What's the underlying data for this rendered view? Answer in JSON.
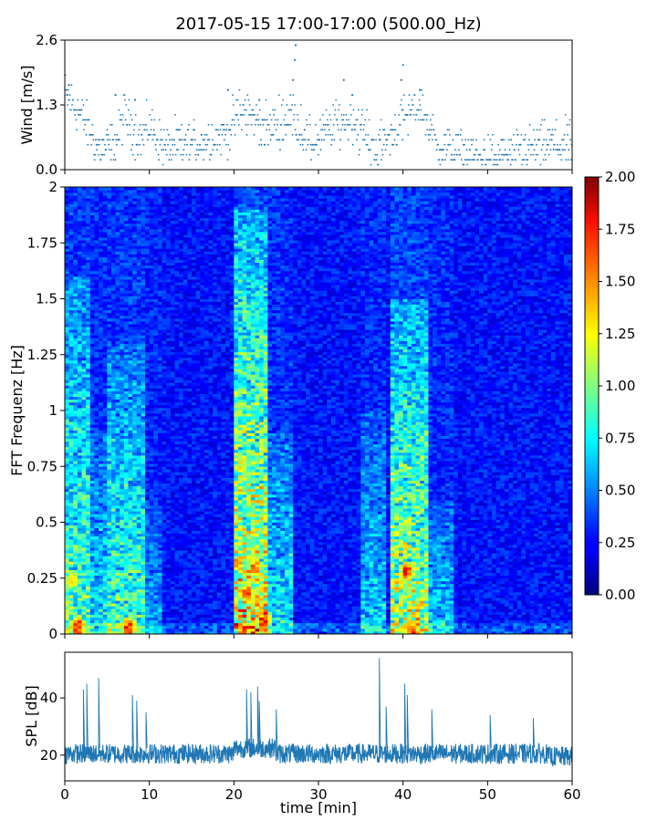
{
  "title": "2017-05-15 17:00-17:00 (500.00_Hz)",
  "colors": {
    "series": "#1f77b4",
    "axis": "#000000",
    "background": "#ffffff"
  },
  "chart_data": [
    {
      "type": "scatter",
      "name": "wind",
      "ylabel": "Wind [m/s]",
      "ylim": [
        0.0,
        2.6
      ],
      "yticks": [
        0.0,
        1.3,
        2.6
      ],
      "ytick_labels": [
        "0.0",
        "1.3",
        "2.6"
      ],
      "xlim": [
        0,
        60
      ],
      "shared_xticks": [
        0,
        10,
        20,
        30,
        40,
        50,
        60
      ],
      "quantization_step": 0.1,
      "segments": [
        {
          "x": [
            0,
            2
          ],
          "y": [
            1.5,
            1.1
          ]
        },
        {
          "x": [
            2,
            4
          ],
          "y": [
            1.1,
            0.4
          ]
        },
        {
          "x": [
            4,
            6
          ],
          "y": [
            0.4,
            0.5
          ]
        },
        {
          "x": [
            6,
            7
          ],
          "y": [
            0.5,
            1.1
          ]
        },
        {
          "x": [
            7,
            9
          ],
          "y": [
            1.1,
            0.6
          ]
        },
        {
          "x": [
            9,
            10
          ],
          "y": [
            0.6,
            0.9
          ]
        },
        {
          "x": [
            10,
            12
          ],
          "y": [
            0.9,
            0.4
          ]
        },
        {
          "x": [
            12,
            19
          ],
          "y": [
            0.4,
            0.7
          ]
        },
        {
          "x": [
            19,
            21
          ],
          "y": [
            0.7,
            1.2
          ]
        },
        {
          "x": [
            21,
            24
          ],
          "y": [
            1.2,
            0.8
          ]
        },
        {
          "x": [
            24,
            27
          ],
          "y": [
            0.8,
            1.1
          ]
        },
        {
          "x": [
            27,
            29
          ],
          "y": [
            1.1,
            0.5
          ]
        },
        {
          "x": [
            29,
            32
          ],
          "y": [
            0.5,
            0.9
          ]
        },
        {
          "x": [
            32,
            34
          ],
          "y": [
            0.9,
            1.0
          ]
        },
        {
          "x": [
            34,
            37
          ],
          "y": [
            1.0,
            0.4
          ]
        },
        {
          "x": [
            37,
            40
          ],
          "y": [
            0.4,
            1.0
          ]
        },
        {
          "x": [
            40,
            42
          ],
          "y": [
            1.0,
            1.3
          ]
        },
        {
          "x": [
            42,
            44
          ],
          "y": [
            1.3,
            0.5
          ]
        },
        {
          "x": [
            44,
            47
          ],
          "y": [
            0.5,
            0.3
          ]
        },
        {
          "x": [
            47,
            51
          ],
          "y": [
            0.3,
            0.2
          ]
        },
        {
          "x": [
            51,
            57
          ],
          "y": [
            0.2,
            0.5
          ]
        },
        {
          "x": [
            57,
            60
          ],
          "y": [
            0.5,
            0.5
          ]
        }
      ],
      "peaks": [
        {
          "x": 27.3,
          "y": 2.5
        },
        {
          "x": 27.2,
          "y": 2.2
        },
        {
          "x": 27.0,
          "y": 1.8
        },
        {
          "x": 40.0,
          "y": 2.1
        },
        {
          "x": 39.8,
          "y": 1.8
        },
        {
          "x": 33.0,
          "y": 1.8
        },
        {
          "x": 0.5,
          "y": 1.7
        },
        {
          "x": 0.3,
          "y": 1.5
        },
        {
          "x": 19.3,
          "y": 1.6
        },
        {
          "x": 42.0,
          "y": 1.6
        },
        {
          "x": 6.0,
          "y": 1.5
        },
        {
          "x": 8.3,
          "y": 1.4
        },
        {
          "x": 23.0,
          "y": 1.4
        },
        {
          "x": 34.0,
          "y": 1.5
        }
      ]
    },
    {
      "type": "heatmap",
      "name": "spectrogram",
      "ylabel": "FFT Frequenz [Hz]",
      "ylim": [
        0,
        2
      ],
      "yticks": [
        0,
        0.25,
        0.5,
        0.75,
        1,
        1.25,
        1.5,
        1.75,
        2
      ],
      "ytick_labels": [
        "0",
        "0.25",
        "0.5",
        "0.75",
        "1",
        "1.25",
        "1.5",
        "1.75",
        "2"
      ],
      "xlim": [
        0,
        60
      ],
      "colorbar": {
        "range": [
          0.0,
          2.0
        ],
        "ticks": [
          0.0,
          0.25,
          0.5,
          0.75,
          1.0,
          1.25,
          1.5,
          1.75,
          2.0
        ],
        "tick_labels": [
          "0.00",
          "0.25",
          "0.50",
          "0.75",
          "1.00",
          "1.25",
          "1.50",
          "1.75",
          "2.00"
        ],
        "colormap": "jet"
      },
      "baseline_intensity": 0.28,
      "active_bands": [
        {
          "x": [
            0,
            3
          ],
          "intensity": 0.75,
          "max_freq": 1.6
        },
        {
          "x": [
            3,
            5
          ],
          "intensity": 0.5,
          "max_freq": 0.9
        },
        {
          "x": [
            5,
            9.5
          ],
          "intensity": 0.7,
          "max_freq": 1.3
        },
        {
          "x": [
            9.5,
            11.5
          ],
          "intensity": 0.35,
          "max_freq": 0.6
        },
        {
          "x": [
            20,
            24
          ],
          "intensity": 1.1,
          "max_freq": 1.9
        },
        {
          "x": [
            24,
            27
          ],
          "intensity": 0.55,
          "max_freq": 0.9
        },
        {
          "x": [
            35,
            38
          ],
          "intensity": 0.45,
          "max_freq": 1.0
        },
        {
          "x": [
            38.5,
            43
          ],
          "intensity": 0.95,
          "max_freq": 1.5
        },
        {
          "x": [
            43,
            46
          ],
          "intensity": 0.45,
          "max_freq": 0.6
        }
      ],
      "hotspots": [
        {
          "x": 1.5,
          "f": 0.03,
          "v": 2.0
        },
        {
          "x": 7.5,
          "f": 0.03,
          "v": 1.9
        },
        {
          "x": 21.5,
          "f": 0.18,
          "v": 1.8
        },
        {
          "x": 22.5,
          "f": 0.3,
          "v": 1.7
        },
        {
          "x": 23.5,
          "f": 0.06,
          "v": 1.9
        },
        {
          "x": 40.5,
          "f": 0.28,
          "v": 1.9
        },
        {
          "x": 41.0,
          "f": 0.02,
          "v": 1.9
        },
        {
          "x": 0.8,
          "f": 0.24,
          "v": 1.4
        },
        {
          "x": 22.0,
          "f": 0.55,
          "v": 1.1
        }
      ]
    },
    {
      "type": "line",
      "name": "spl",
      "ylabel": "SPL [dB]",
      "xlabel": "time [min]",
      "xlim": [
        0,
        60
      ],
      "ylim": [
        11,
        56
      ],
      "yticks": [
        20,
        40
      ],
      "ytick_labels": [
        "20",
        "40"
      ],
      "xticks": [
        0,
        10,
        20,
        30,
        40,
        50,
        60
      ],
      "xtick_labels": [
        "0",
        "10",
        "20",
        "30",
        "40",
        "50",
        "60"
      ],
      "baseline_db": 20.5,
      "noise_band_db": 3.5,
      "spikes": [
        {
          "x": 2.2,
          "y": 43
        },
        {
          "x": 2.6,
          "y": 45
        },
        {
          "x": 4.0,
          "y": 47
        },
        {
          "x": 8.0,
          "y": 41
        },
        {
          "x": 8.5,
          "y": 39
        },
        {
          "x": 9.6,
          "y": 35
        },
        {
          "x": 21.5,
          "y": 43
        },
        {
          "x": 22.0,
          "y": 42
        },
        {
          "x": 22.8,
          "y": 44
        },
        {
          "x": 23.0,
          "y": 39
        },
        {
          "x": 25.0,
          "y": 36
        },
        {
          "x": 37.2,
          "y": 54
        },
        {
          "x": 38.0,
          "y": 37
        },
        {
          "x": 40.2,
          "y": 45
        },
        {
          "x": 40.5,
          "y": 41
        },
        {
          "x": 43.4,
          "y": 36
        },
        {
          "x": 50.3,
          "y": 34
        },
        {
          "x": 55.4,
          "y": 33
        }
      ]
    }
  ]
}
